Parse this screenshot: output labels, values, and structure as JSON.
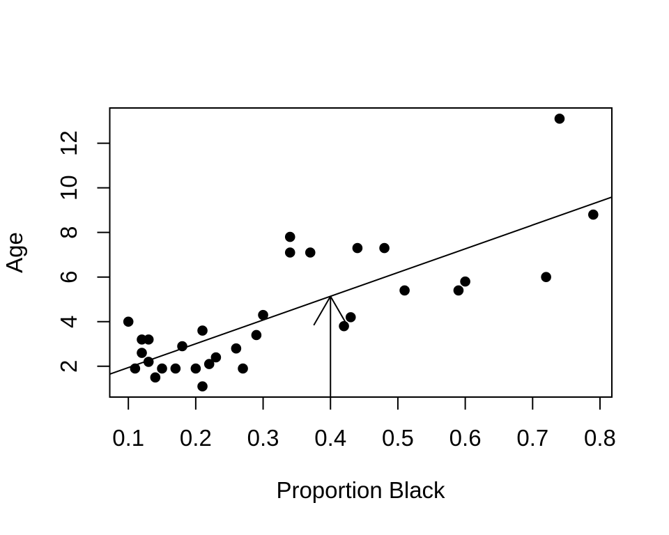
{
  "chart_data": {
    "type": "scatter",
    "title": "",
    "xlabel": "Proportion Black",
    "ylabel": "Age",
    "x_ticks": [
      "0.1",
      "0.2",
      "0.3",
      "0.4",
      "0.5",
      "0.6",
      "0.7",
      "0.8"
    ],
    "x_tick_values": [
      0.1,
      0.2,
      0.3,
      0.4,
      0.5,
      0.6,
      0.7,
      0.8
    ],
    "y_ticks": [
      "2",
      "4",
      "6",
      "8",
      "10",
      "12"
    ],
    "y_tick_values": [
      2,
      4,
      6,
      8,
      10,
      12
    ],
    "xlim": [
      0.0724,
      0.8176
    ],
    "ylim": [
      0.62,
      13.58
    ],
    "grid": false,
    "legend": null,
    "points": [
      [
        0.21,
        1.1
      ],
      [
        0.14,
        1.5
      ],
      [
        0.11,
        1.9
      ],
      [
        0.13,
        2.2
      ],
      [
        0.12,
        2.6
      ],
      [
        0.13,
        3.2
      ],
      [
        0.12,
        3.2
      ],
      [
        0.18,
        2.9
      ],
      [
        0.23,
        2.4
      ],
      [
        0.22,
        2.1
      ],
      [
        0.2,
        1.9
      ],
      [
        0.17,
        1.9
      ],
      [
        0.15,
        1.9
      ],
      [
        0.27,
        1.9
      ],
      [
        0.26,
        2.8
      ],
      [
        0.21,
        3.6
      ],
      [
        0.3,
        4.3
      ],
      [
        0.42,
        3.8
      ],
      [
        0.43,
        4.2
      ],
      [
        0.59,
        5.4
      ],
      [
        0.6,
        5.8
      ],
      [
        0.72,
        6.0
      ],
      [
        0.29,
        3.4
      ],
      [
        0.1,
        4.0
      ],
      [
        0.48,
        7.3
      ],
      [
        0.44,
        7.3
      ],
      [
        0.34,
        7.8
      ],
      [
        0.37,
        7.1
      ],
      [
        0.34,
        7.1
      ],
      [
        0.74,
        13.1
      ],
      [
        0.79,
        8.8
      ],
      [
        0.51,
        5.4
      ]
    ],
    "regression_line": {
      "intercept": 0.879,
      "slope": 10.647
    },
    "arrow": {
      "x": 0.4,
      "from_y": 0.62,
      "to_y": 5.138
    },
    "point_color": "#000000",
    "line_color": "#000000",
    "background": "#ffffff"
  }
}
